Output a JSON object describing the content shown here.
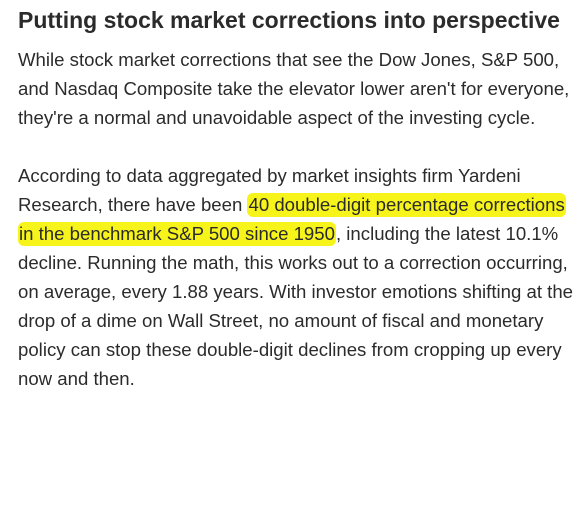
{
  "article": {
    "heading": "Putting stock market corrections into perspective",
    "paragraph1": "While stock market corrections that see the Dow Jones, S&P 500, and Nasdaq Composite take the elevator lower aren't for everyone, they're a normal and unavoidable aspect of the investing cycle.",
    "paragraph2": {
      "before": "According to data aggregated by market insights firm Yardeni Research, there have been ",
      "highlighted": "40 double-digit percentage corrections in the benchmark S&P 500 since 1950",
      "after": ", including the latest 10.1% decline. Running the math, this works out to a correction occurring, on average, every 1.88 years. With investor emotions shifting at the drop of a dime on Wall Street, no amount of fiscal and monetary policy can stop these double-digit declines from cropping up every now and then."
    },
    "highlight_color": "#f7f41c",
    "text_color": "#2b2b2b"
  }
}
